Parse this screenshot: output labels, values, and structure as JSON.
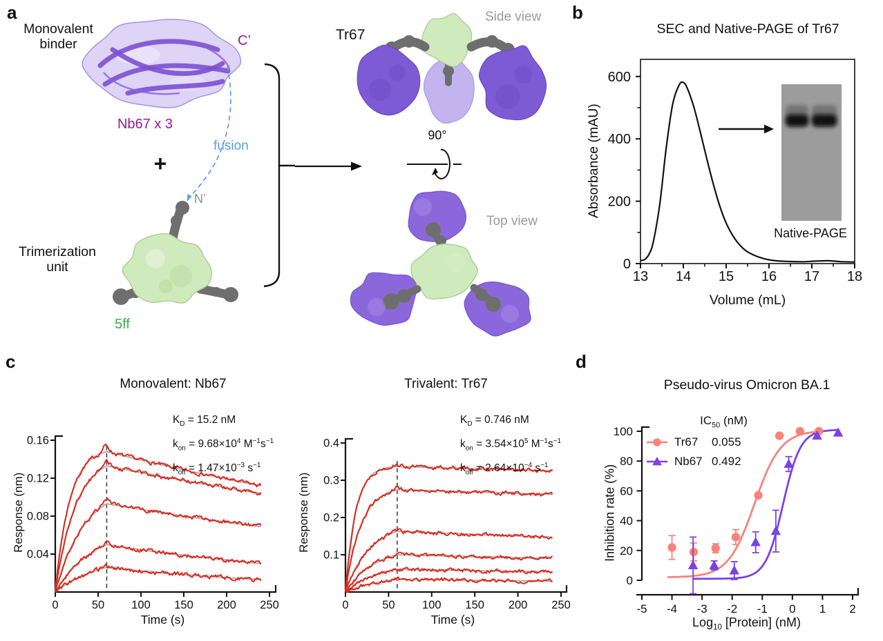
{
  "panels": {
    "a": "a",
    "b": "b",
    "c": "c",
    "d": "d"
  },
  "colors": {
    "trace_red": "#e02418",
    "fit_gray": "#b3b3b3",
    "tr67_salmon": "#f9837b",
    "nb67_purple": "#7b42e6",
    "gel_gray": "#9c9c9c",
    "protein_purple": "#7d5bd5",
    "protein_purple_light": "#c3b3ee",
    "protein_lavender": "#ddd4f6",
    "ribbon_purple": "#7c50d2",
    "protein_green": "#cfeabc",
    "linker_gray": "#6e6e6e",
    "annotation_gray": "#9b9b9b",
    "axis_black": "#111111",
    "dashed_line": "#3f3f3f",
    "fusion_blue": "#5c9ce5"
  },
  "panel_a": {
    "monovalent_binder": [
      "Monovalent",
      "binder"
    ],
    "nb_name": "Nb67 x 3",
    "c_terminus": "C’",
    "n_terminus": "N’",
    "fusion_label": "fusion",
    "plus_sign": "+",
    "trimerization_unit": [
      "Trimerization",
      "unit"
    ],
    "trimer_name": "5ff",
    "product_name": "Tr67",
    "side_view_label": "Side view",
    "top_view_label": "Top view",
    "rotation_label": "90°"
  },
  "panel_b": {
    "gel_caption": "Native-PAGE"
  },
  "panel_c": {
    "left": {
      "kinetics": [
        [
          {
            "t": "K"
          },
          {
            "t": "D",
            "m": "sub"
          },
          {
            "t": " = 15.2 nM"
          }
        ],
        [
          {
            "t": "k"
          },
          {
            "t": "on",
            "m": "sub"
          },
          {
            "t": " = 9.68×10"
          },
          {
            "t": "4",
            "m": "sup"
          },
          {
            "t": " M"
          },
          {
            "t": "−1",
            "m": "sup"
          },
          {
            "t": "s"
          },
          {
            "t": "−1",
            "m": "sup"
          }
        ],
        [
          {
            "t": "k"
          },
          {
            "t": "off",
            "m": "sub"
          },
          {
            "t": " = 1.47×10"
          },
          {
            "t": "−3",
            "m": "sup"
          },
          {
            "t": " s"
          },
          {
            "t": "−1",
            "m": "sup"
          }
        ]
      ]
    },
    "right": {
      "kinetics": [
        [
          {
            "t": "K"
          },
          {
            "t": "D",
            "m": "sub"
          },
          {
            "t": " = 0.746 nM"
          }
        ],
        [
          {
            "t": "k"
          },
          {
            "t": "on",
            "m": "sub"
          },
          {
            "t": " = 3.54×10"
          },
          {
            "t": "5",
            "m": "sup"
          },
          {
            "t": " M"
          },
          {
            "t": "−1",
            "m": "sup"
          },
          {
            "t": "s"
          },
          {
            "t": "−1",
            "m": "sup"
          }
        ],
        [
          {
            "t": "k"
          },
          {
            "t": "off",
            "m": "sub"
          },
          {
            "t": " = 2.64×10"
          },
          {
            "t": "−4",
            "m": "sup"
          },
          {
            "t": " s"
          },
          {
            "t": "−1",
            "m": "sup"
          }
        ]
      ]
    }
  },
  "panel_d": {
    "legend": {
      "header": [
        {
          "t": "IC"
        },
        {
          "t": "50",
          "m": "sub"
        },
        {
          "t": " (nM)"
        }
      ],
      "rows": [
        {
          "name": "Tr67",
          "ic50": "0.055"
        },
        {
          "name": "Nb67",
          "ic50": "0.492"
        }
      ]
    },
    "xlabel_rich": [
      {
        "t": "Log"
      },
      {
        "t": "10",
        "m": "sub"
      },
      {
        "t": " [Protein] (nM)"
      }
    ],
    "ylabel": "Inhibition rate (%)"
  },
  "chart_data": [
    {
      "id": "sec",
      "type": "line",
      "title": "SEC and Native-PAGE of Tr67",
      "xlabel": "Volume (mL)",
      "ylabel": "Absorbance (mAU)",
      "xlim": [
        13,
        18
      ],
      "ylim": [
        0,
        655
      ],
      "xticks": [
        13,
        14,
        15,
        16,
        17,
        18
      ],
      "xtick_labels": [
        "13",
        "14",
        "15",
        "16",
        "17",
        "18"
      ],
      "xticks_minor": [
        13.5,
        14.5,
        15.5,
        16.5,
        17.5
      ],
      "yticks": [
        0,
        200,
        400,
        600
      ],
      "ytick_labels": [
        "0",
        "200",
        "400",
        "600"
      ],
      "yticks_minor": [
        100,
        300,
        500
      ],
      "grid": false,
      "curve_points": [
        [
          13.0,
          10
        ],
        [
          13.1,
          13
        ],
        [
          13.2,
          30
        ],
        [
          13.3,
          70
        ],
        [
          13.45,
          190
        ],
        [
          13.6,
          370
        ],
        [
          13.75,
          510
        ],
        [
          13.9,
          572
        ],
        [
          14.0,
          581
        ],
        [
          14.1,
          560
        ],
        [
          14.25,
          500
        ],
        [
          14.4,
          420
        ],
        [
          14.55,
          335
        ],
        [
          14.7,
          255
        ],
        [
          14.85,
          185
        ],
        [
          15.0,
          130
        ],
        [
          15.2,
          80
        ],
        [
          15.4,
          48
        ],
        [
          15.6,
          30
        ],
        [
          15.85,
          17
        ],
        [
          16.1,
          10
        ],
        [
          16.4,
          7
        ],
        [
          16.8,
          6
        ],
        [
          17.1,
          8
        ],
        [
          17.4,
          9
        ],
        [
          17.7,
          6
        ],
        [
          18.0,
          5
        ]
      ]
    },
    {
      "id": "bli_left",
      "type": "line",
      "title": "Monovalent: Nb67",
      "xlabel": "Time (s)",
      "ylabel": "Response (nm)",
      "xlim": [
        0,
        250
      ],
      "ylim": [
        0,
        0.16
      ],
      "xticks": [
        0,
        50,
        100,
        150,
        200,
        250
      ],
      "xtick_labels": [
        "0",
        "50",
        "100",
        "150",
        "200",
        "250"
      ],
      "yticks": [
        0.04,
        0.08,
        0.12,
        0.16
      ],
      "ytick_labels": [
        "0.04",
        "0.08",
        "0.12",
        "0.16"
      ],
      "assoc_end_s": 60,
      "dissoc_end_s": 240,
      "traces": [
        {
          "peak": 0.148,
          "end": 0.112,
          "kobs": 0.06
        },
        {
          "peak": 0.133,
          "end": 0.104,
          "kobs": 0.042
        },
        {
          "peak": 0.093,
          "end": 0.069,
          "kobs": 0.03
        },
        {
          "peak": 0.05,
          "end": 0.03,
          "kobs": 0.023
        },
        {
          "peak": 0.026,
          "end": 0.013,
          "kobs": 0.019
        }
      ]
    },
    {
      "id": "bli_right",
      "type": "line",
      "title": "Trivalent: Tr67",
      "xlabel": "Time (s)",
      "ylabel": "Response (nm)",
      "xlim": [
        0,
        250
      ],
      "ylim": [
        0,
        0.4
      ],
      "xticks": [
        0,
        50,
        100,
        150,
        200,
        250
      ],
      "xtick_labels": [
        "0",
        "50",
        "100",
        "150",
        "200",
        "250"
      ],
      "yticks": [
        0.1,
        0.2,
        0.3,
        0.4
      ],
      "ytick_labels": [
        "0.1",
        "0.2",
        "0.3",
        "0.4"
      ],
      "assoc_end_s": 60,
      "dissoc_end_s": 240,
      "traces": [
        {
          "peak": 0.337,
          "end": 0.325,
          "kobs": 0.085
        },
        {
          "peak": 0.275,
          "end": 0.262,
          "kobs": 0.055
        },
        {
          "peak": 0.163,
          "end": 0.147,
          "kobs": 0.036
        },
        {
          "peak": 0.1,
          "end": 0.09,
          "kobs": 0.03
        },
        {
          "peak": 0.061,
          "end": 0.054,
          "kobs": 0.026
        },
        {
          "peak": 0.034,
          "end": 0.029,
          "kobs": 0.022
        }
      ]
    },
    {
      "id": "dose",
      "type": "scatter",
      "title": "Pseudo-virus Omicron BA.1",
      "xlabel": "Log10 [Protein] (nM)",
      "ylabel": "Inhibition rate (%)",
      "xlim": [
        -5,
        2
      ],
      "ylim": [
        0,
        100
      ],
      "xticks": [
        -5,
        -4,
        -3,
        -2,
        -1,
        0,
        1,
        2
      ],
      "xtick_labels": [
        "-5",
        "-4",
        "-3",
        "-2",
        "-1",
        "0",
        "1",
        "2"
      ],
      "yticks": [
        0,
        20,
        40,
        60,
        80,
        100
      ],
      "ytick_labels": [
        "0",
        "20",
        "40",
        "60",
        "80",
        "100"
      ],
      "series": [
        {
          "name": "Tr67",
          "ic50_nM": "0.055",
          "color": "#f9837b",
          "marker": "circle",
          "points": [
            {
              "x": -4.0,
              "y": 22,
              "err": 8
            },
            {
              "x": -3.28,
              "y": 19,
              "err": 6
            },
            {
              "x": -2.55,
              "y": 21.5,
              "err": 3
            },
            {
              "x": -1.88,
              "y": 29,
              "err": 5
            },
            {
              "x": -1.13,
              "y": 57,
              "err": 0
            },
            {
              "x": -0.43,
              "y": 97,
              "err": 0
            },
            {
              "x": 0.25,
              "y": 100,
              "err": 0
            },
            {
              "x": 0.88,
              "y": 100,
              "err": 0
            }
          ],
          "fit": {
            "bottom": 2,
            "top": 100.5,
            "logIC50": -1.26,
            "hill": 1.0,
            "domain": [
              -4.15,
              0.92
            ]
          }
        },
        {
          "name": "Nb67",
          "ic50_nM": "0.492",
          "color": "#7b42e6",
          "marker": "triangle",
          "points": [
            {
              "x": -3.3,
              "y": 10,
              "err": 19
            },
            {
              "x": -2.6,
              "y": 10,
              "err": 3
            },
            {
              "x": -1.93,
              "y": 6.5,
              "err": 6
            },
            {
              "x": -1.22,
              "y": 25.5,
              "err": 7
            },
            {
              "x": -0.55,
              "y": 33,
              "err": 14
            },
            {
              "x": -0.12,
              "y": 78,
              "err": 5
            },
            {
              "x": 0.82,
              "y": 97,
              "err": 0
            },
            {
              "x": 1.52,
              "y": 99,
              "err": 0
            }
          ],
          "fit": {
            "bottom": 1,
            "top": 101,
            "logIC50": -0.31,
            "hill": 1.5,
            "domain": [
              -3.32,
              1.56
            ]
          }
        }
      ]
    }
  ]
}
